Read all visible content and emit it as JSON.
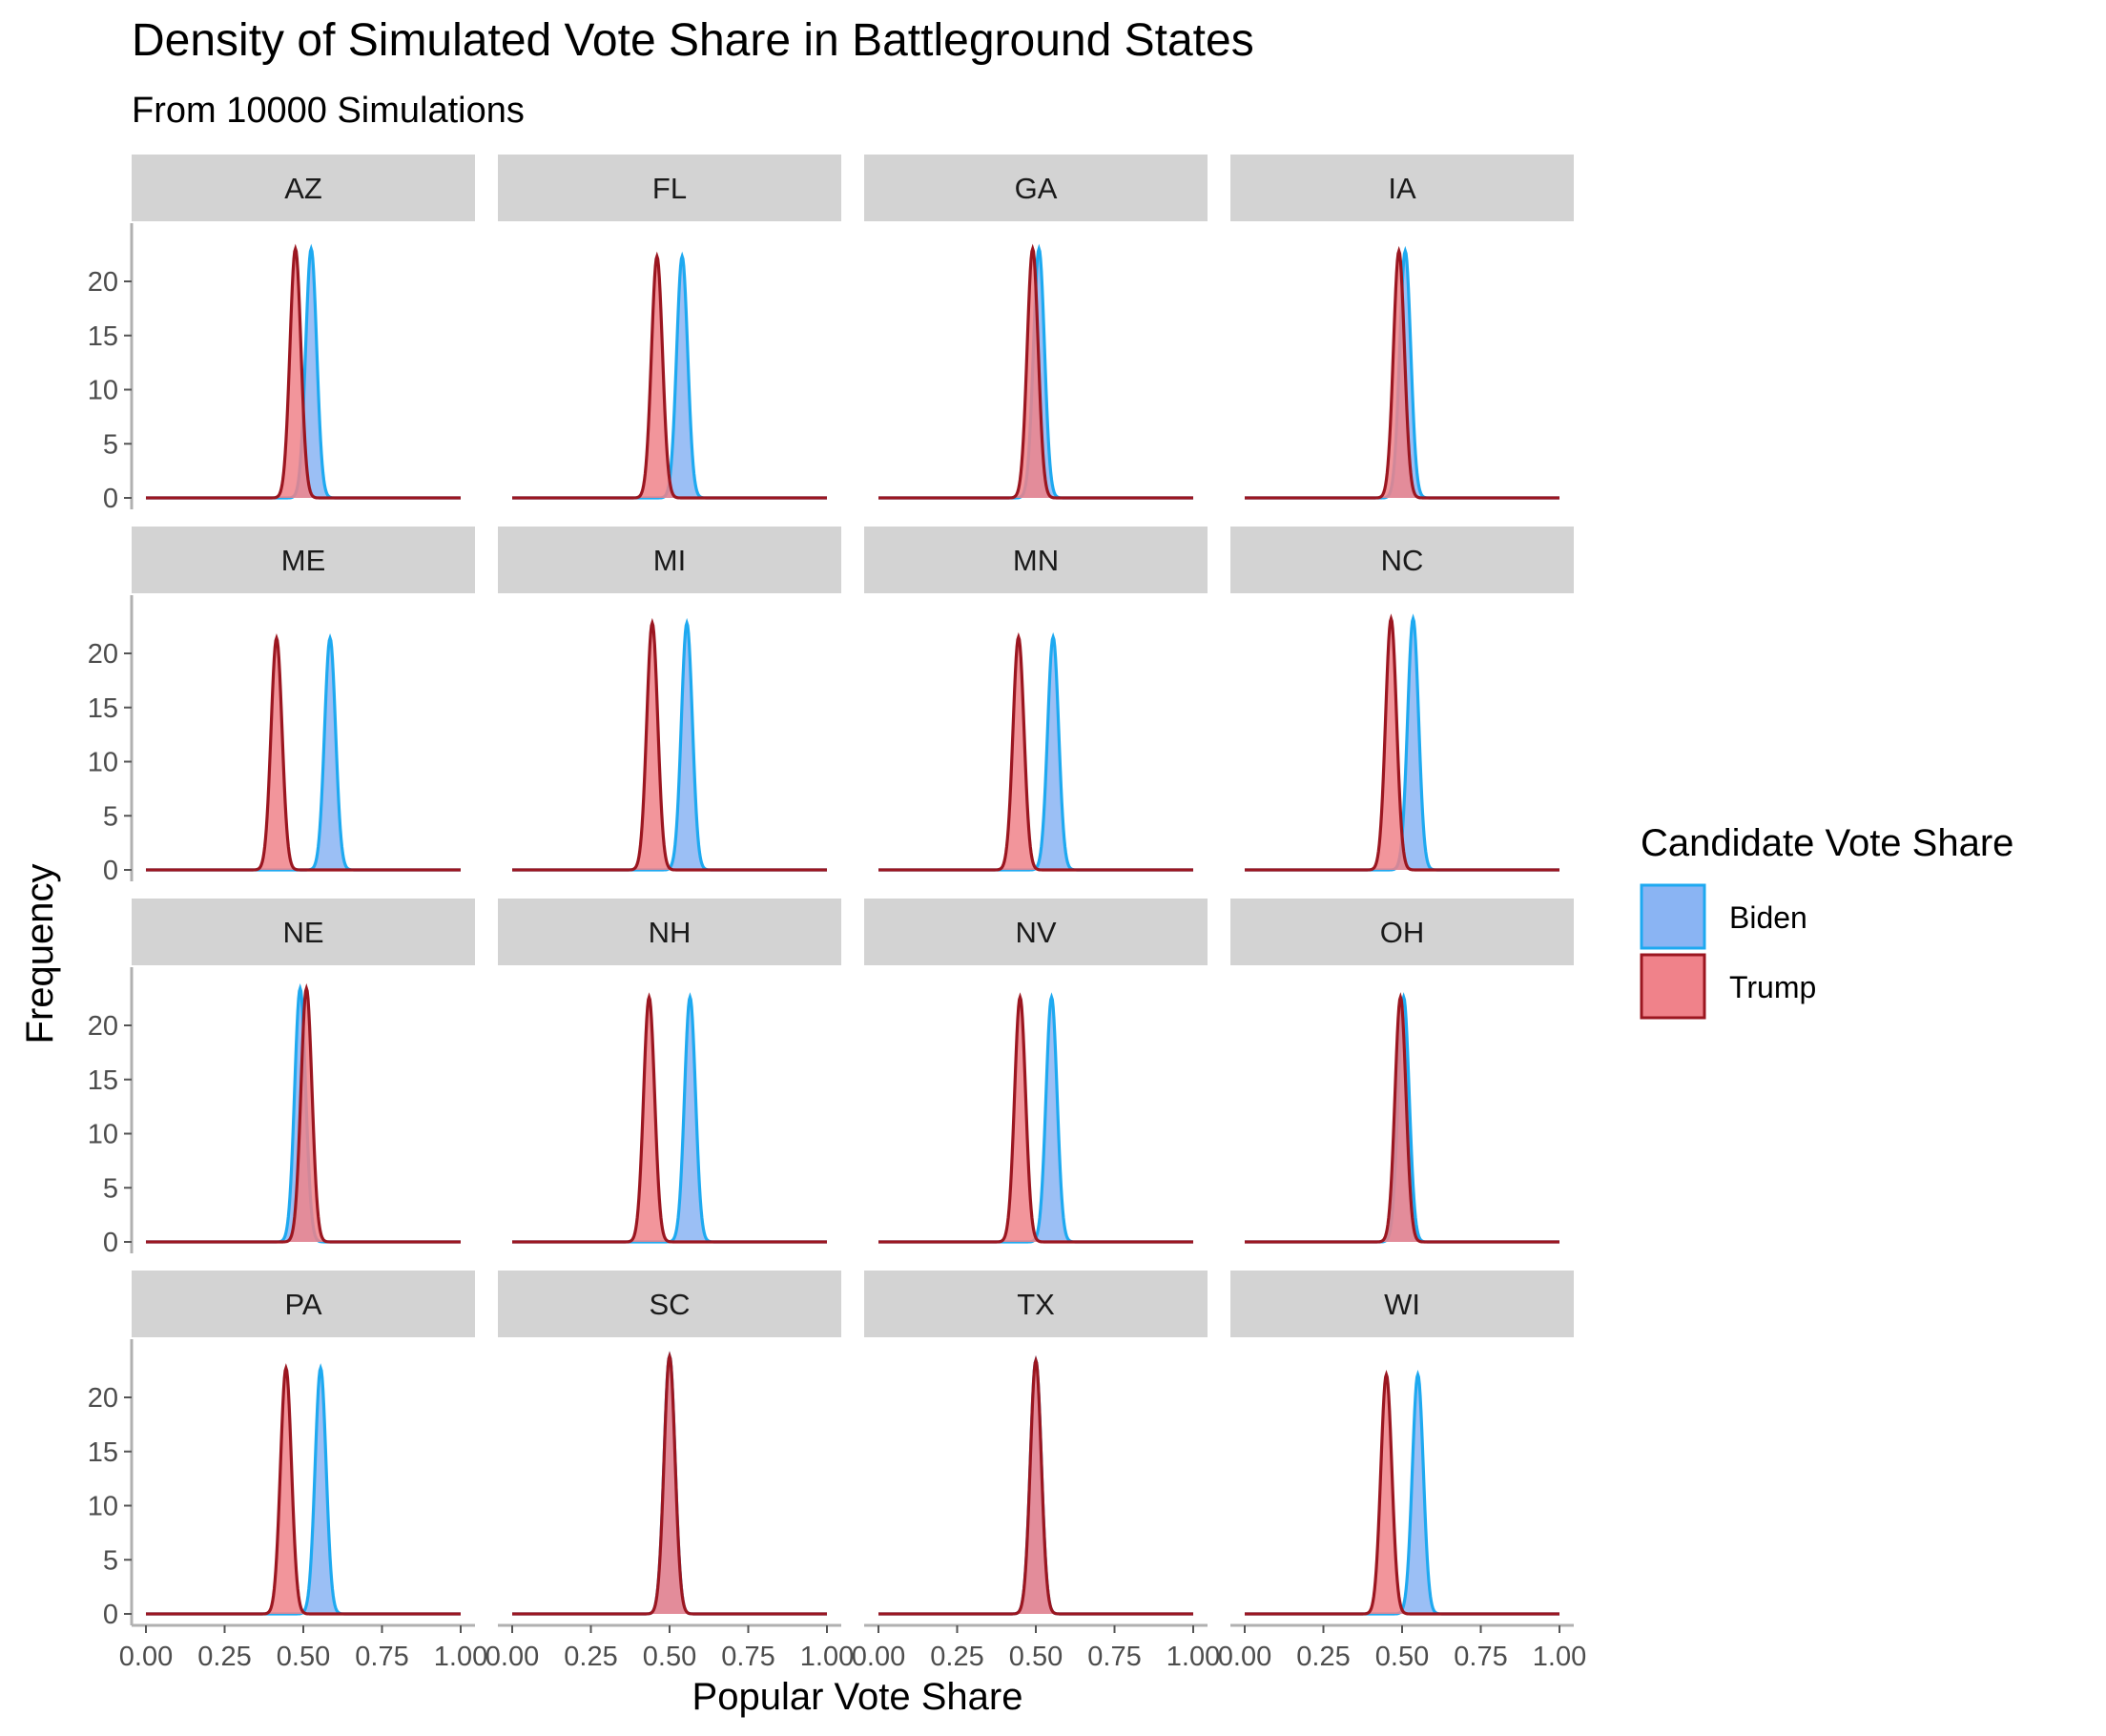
{
  "chart_data": {
    "type": "area",
    "title": "Density of Simulated Vote Share in Battleground States",
    "subtitle": "From 10000 Simulations",
    "xlabel": "Popular Vote Share",
    "ylabel": "Frequency",
    "xlim": [
      0,
      1
    ],
    "ylim": [
      0,
      24
    ],
    "x_ticks": [
      0.0,
      0.25,
      0.5,
      0.75,
      1.0
    ],
    "x_tick_labels": [
      "0.00",
      "0.25",
      "0.50",
      "0.75",
      "1.00"
    ],
    "y_ticks": [
      0,
      5,
      10,
      15,
      20
    ],
    "y_tick_labels": [
      "0",
      "5",
      "10",
      "15",
      "20"
    ],
    "grid": false,
    "legend": {
      "title": "Candidate Vote Share",
      "position": "right",
      "entries": [
        {
          "name": "Biden",
          "fill": "#8ab4f3",
          "line": "#1ea9f0"
        },
        {
          "name": "Trump",
          "fill": "#f0828a",
          "line": "#9b1620"
        }
      ]
    },
    "series_names": [
      "Biden",
      "Trump"
    ],
    "facets": [
      {
        "state": "AZ",
        "biden_mean": 0.525,
        "trump_mean": 0.475,
        "biden_peak": 23.0,
        "trump_peak": 23.0
      },
      {
        "state": "FL",
        "biden_mean": 0.54,
        "trump_mean": 0.46,
        "biden_peak": 22.3,
        "trump_peak": 22.3
      },
      {
        "state": "GA",
        "biden_mean": 0.51,
        "trump_mean": 0.49,
        "biden_peak": 23.0,
        "trump_peak": 23.0
      },
      {
        "state": "IA",
        "biden_mean": 0.51,
        "trump_mean": 0.49,
        "biden_peak": 22.8,
        "trump_peak": 22.8
      },
      {
        "state": "ME",
        "biden_mean": 0.585,
        "trump_mean": 0.415,
        "biden_peak": 21.4,
        "trump_peak": 21.4
      },
      {
        "state": "MI",
        "biden_mean": 0.555,
        "trump_mean": 0.445,
        "biden_peak": 22.8,
        "trump_peak": 22.8
      },
      {
        "state": "MN",
        "biden_mean": 0.555,
        "trump_mean": 0.445,
        "biden_peak": 21.5,
        "trump_peak": 21.5
      },
      {
        "state": "NC",
        "biden_mean": 0.535,
        "trump_mean": 0.465,
        "biden_peak": 23.2,
        "trump_peak": 23.2
      },
      {
        "state": "NE",
        "biden_mean": 0.49,
        "trump_mean": 0.51,
        "biden_peak": 23.4,
        "trump_peak": 23.4
      },
      {
        "state": "NH",
        "biden_mean": 0.565,
        "trump_mean": 0.435,
        "biden_peak": 22.6,
        "trump_peak": 22.6
      },
      {
        "state": "NV",
        "biden_mean": 0.55,
        "trump_mean": 0.45,
        "biden_peak": 22.6,
        "trump_peak": 22.6
      },
      {
        "state": "OH",
        "biden_mean": 0.505,
        "trump_mean": 0.495,
        "biden_peak": 22.6,
        "trump_peak": 22.6
      },
      {
        "state": "PA",
        "biden_mean": 0.555,
        "trump_mean": 0.445,
        "biden_peak": 22.7,
        "trump_peak": 22.7
      },
      {
        "state": "SC",
        "biden_mean": 0.5,
        "trump_mean": 0.5,
        "biden_peak": 23.8,
        "trump_peak": 23.8
      },
      {
        "state": "TX",
        "biden_mean": 0.5,
        "trump_mean": 0.5,
        "biden_peak": 23.4,
        "trump_peak": 23.4
      },
      {
        "state": "WI",
        "biden_mean": 0.55,
        "trump_mean": 0.45,
        "biden_peak": 22.1,
        "trump_peak": 22.1
      }
    ]
  }
}
